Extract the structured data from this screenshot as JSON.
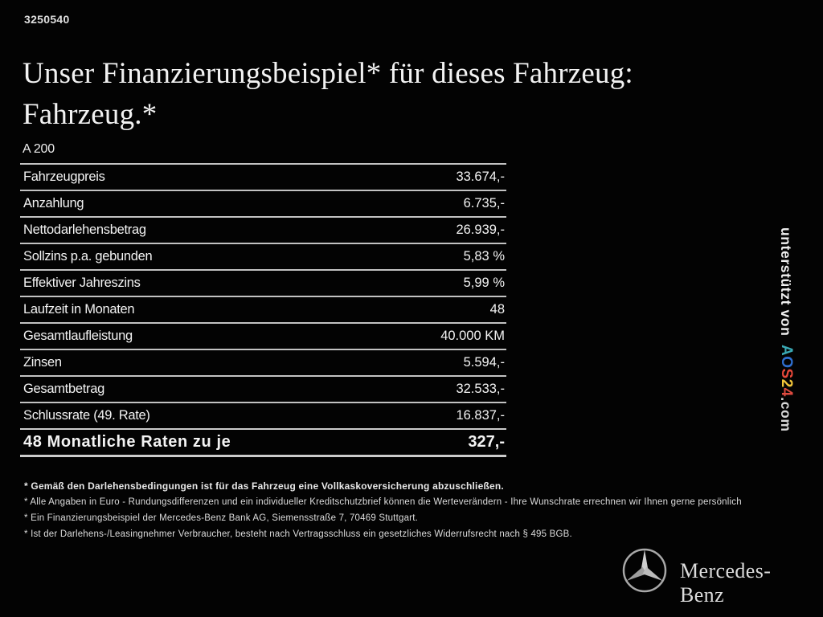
{
  "page": {
    "doc_number": "3250540",
    "background": "#030303"
  },
  "header": {
    "title_line1": "Unser Finanzierungsbeispiel* für dieses Fahrzeug:",
    "title_line2": "Fahrzeug.*",
    "model": "A 200"
  },
  "finance_table": {
    "rows": [
      {
        "label": "Fahrzeugpreis",
        "value": "33.674,-"
      },
      {
        "label": "Anzahlung",
        "value": "6.735,-"
      },
      {
        "label": "Nettodarlehensbetrag",
        "value": "26.939,-"
      },
      {
        "label": "Sollzins p.a. gebunden",
        "value": "5,83 %"
      },
      {
        "label": "Effektiver Jahreszins",
        "value": "5,99 %"
      },
      {
        "label": "Laufzeit in Monaten",
        "value": "48"
      },
      {
        "label": "Gesamtlaufleistung",
        "value": "40.000 KM"
      },
      {
        "label": "Zinsen",
        "value": "5.594,-"
      },
      {
        "label": "Gesamtbetrag",
        "value": "32.533,-"
      },
      {
        "label": "Schlussrate (49. Rate)",
        "value": "16.837,-"
      }
    ],
    "total_row": {
      "label": "48 Monatliche Raten zu je",
      "value": "327,-"
    }
  },
  "footnotes": [
    "* Gemäß den Darlehensbedingungen ist für das Fahrzeug eine Vollkaskoversicherung abzuschließen.",
    "* Alle Angaben in Euro - Rundungsdifferenzen und ein individueller Kreditschutzbrief können die Werteverändern - Ihre Wunschrate errechnen wir Ihnen gerne persönlich",
    "* Ein Finanzierungsbeispiel der Mercedes-Benz Bank AG, Siemensstraße 7, 70469 Stuttgart.",
    "* Ist der Darlehens-/Leasingnehmer Verbraucher, besteht nach Vertragsschluss ein gesetzliches Widerrufsrecht nach § 495 BGB."
  ],
  "sidebar": {
    "supported_by": "unterstützt von",
    "brand": {
      "letters": [
        {
          "char": "A",
          "color": "#3aa9b4"
        },
        {
          "char": "O",
          "color": "#2f6fd0"
        },
        {
          "char": "S",
          "color": "#e8483a"
        },
        {
          "char": "2",
          "color": "#f2c53a"
        },
        {
          "char": "4",
          "color": "#de4a3f"
        }
      ],
      "suffix": ".com",
      "suffix_color": "#d8d8d8"
    }
  },
  "footer": {
    "brand_name": "Mercedes-Benz",
    "star_icon": "mercedes-star",
    "silver": "#b0b0b0"
  }
}
